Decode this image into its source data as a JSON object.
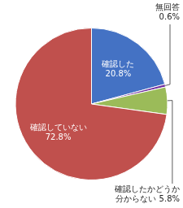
{
  "chart_data": {
    "type": "pie",
    "values": [
      20.8,
      0.6,
      5.8,
      72.8
    ],
    "value_labels": [
      "確認した\n20.8%",
      "無回答\n0.6%",
      "確認したかどうか\n分からない 5.8%",
      "確認していない\n72.8%"
    ],
    "colors": [
      "#4472C4",
      "#7030A0",
      "#9BBB59",
      "#C0504D"
    ],
    "data_labels": true
  }
}
